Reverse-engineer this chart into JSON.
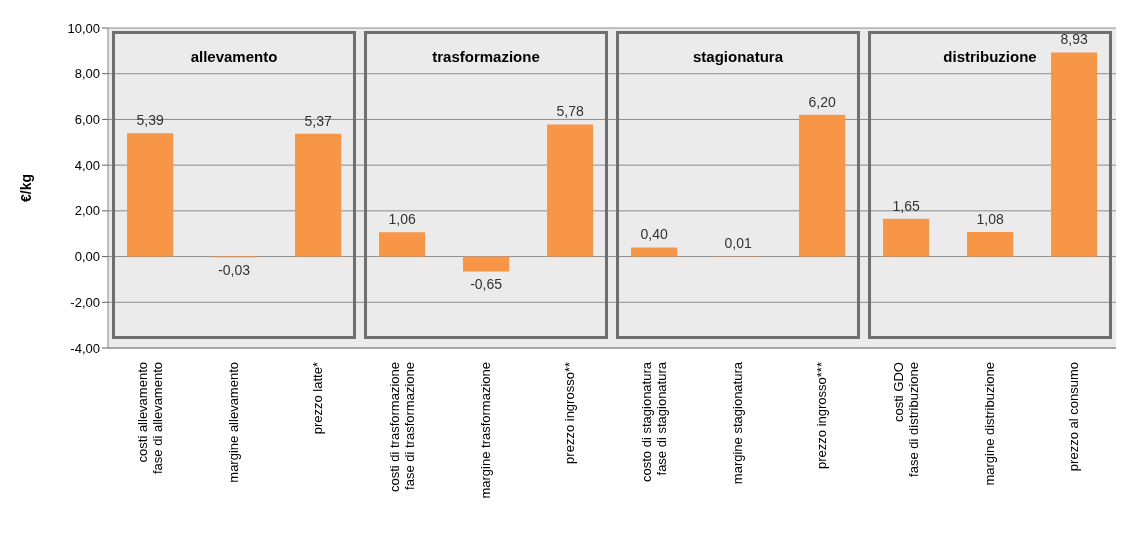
{
  "chart_data": {
    "type": "bar",
    "ylabel": "€/kg",
    "categories": [
      "costi  allevamento\nfase di allevamento",
      "margine allevamento",
      "prezzo latte*",
      "costi di trasformazione\nfase di trasformazione",
      "margine trasformazione",
      "prezzo ingrosso**",
      "costo di stagionatura\nfase di stagionatura",
      "margine stagionatura",
      "prezzo ingrosso***",
      "costi GDO\nfase di distribuzione",
      "margine distribuzione",
      "prezzo al consumo"
    ],
    "values": [
      5.39,
      -0.03,
      5.37,
      1.06,
      -0.65,
      5.78,
      0.4,
      0.01,
      6.2,
      1.65,
      1.08,
      8.93
    ],
    "value_labels": [
      "5,39",
      "-0,03",
      "5,37",
      "1,06",
      "-0,65",
      "5,78",
      "0,40",
      "0,01",
      "6,20",
      "1,65",
      "1,08",
      "8,93"
    ],
    "color": "#f79646",
    "ylim": [
      -4,
      10
    ],
    "yticks": [
      {
        "value": -4,
        "label": "-4,00"
      },
      {
        "value": -2,
        "label": "-2,00"
      },
      {
        "value": 0,
        "label": "0,00"
      },
      {
        "value": 2,
        "label": "2,00"
      },
      {
        "value": 4,
        "label": "4,00"
      },
      {
        "value": 6,
        "label": "6,00"
      },
      {
        "value": 8,
        "label": "8,00"
      },
      {
        "value": 10,
        "label": "10,00"
      }
    ],
    "grid": "y",
    "annotations": [
      "allevamento",
      "trasformazione",
      "stagionatura",
      "distribuzione"
    ]
  }
}
